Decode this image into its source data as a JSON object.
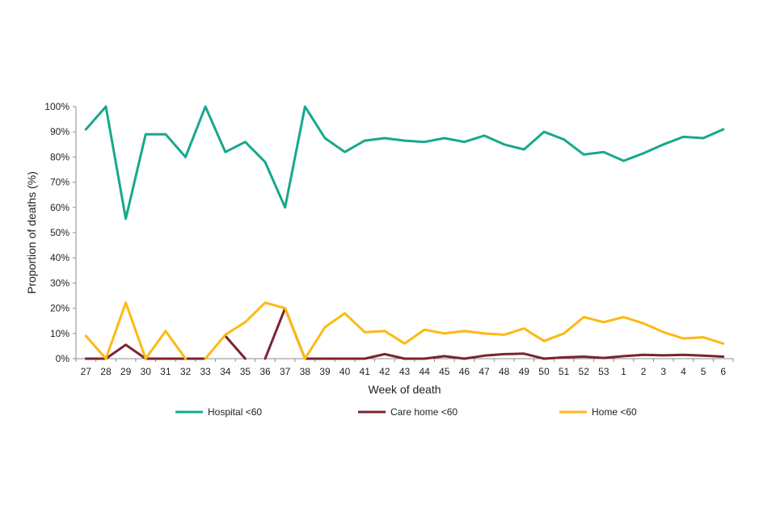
{
  "chart_data": {
    "type": "line",
    "xlabel": "Week of death",
    "ylabel": "Proportion of deaths (%)",
    "ylim": [
      0,
      100
    ],
    "yticks": [
      "0%",
      "10%",
      "20%",
      "30%",
      "40%",
      "50%",
      "60%",
      "70%",
      "80%",
      "90%",
      "100%"
    ],
    "grid": false,
    "legend_position": "bottom",
    "categories": [
      "27",
      "28",
      "29",
      "30",
      "31",
      "32",
      "33",
      "34",
      "35",
      "36",
      "37",
      "38",
      "39",
      "40",
      "41",
      "42",
      "43",
      "44",
      "45",
      "46",
      "47",
      "48",
      "49",
      "50",
      "51",
      "52",
      "53",
      "1",
      "2",
      "3",
      "4",
      "5",
      "6"
    ],
    "series": [
      {
        "name": "Hospital <60",
        "color": "#17a88c",
        "values": [
          91,
          100,
          55.5,
          89,
          89,
          80,
          100,
          82,
          86,
          78,
          60,
          100,
          87.5,
          82,
          86.5,
          87.5,
          86.5,
          86,
          87.5,
          86,
          88.5,
          85,
          83,
          90,
          87,
          81,
          82,
          78.5,
          81.5,
          85,
          88,
          87.5,
          91
        ],
        "segments": [
          [
            0,
            32
          ]
        ]
      },
      {
        "name": "Care home <60",
        "color": "#7b2330",
        "values": [
          0,
          0,
          5.5,
          0,
          0,
          0,
          0,
          9,
          0,
          0,
          20,
          0,
          0,
          0,
          0,
          1.8,
          0,
          0,
          1,
          0,
          1.2,
          1.8,
          2,
          0,
          0.5,
          0.8,
          0.3,
          1,
          1.5,
          1.3,
          1.5,
          1.2,
          0.8
        ],
        "segments": [
          [
            0,
            6
          ],
          [
            7,
            8
          ],
          [
            9,
            32
          ]
        ]
      },
      {
        "name": "Home <60",
        "color": "#fdb913",
        "values": [
          9,
          0,
          22.2,
          0,
          11,
          0,
          0,
          9.5,
          14.5,
          22.2,
          20,
          0,
          12.5,
          18,
          10.5,
          11,
          6,
          11.5,
          10,
          11,
          10,
          9.5,
          12,
          7,
          10,
          16.5,
          14.5,
          16.5,
          14,
          10.5,
          8,
          8.5,
          6
        ],
        "segments": [
          [
            0,
            5
          ],
          [
            6,
            32
          ]
        ]
      }
    ]
  }
}
